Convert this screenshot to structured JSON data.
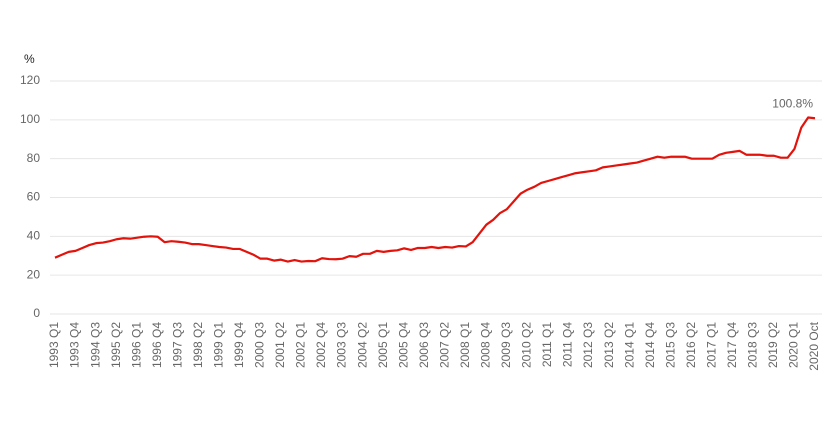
{
  "chart_data": {
    "type": "line",
    "ylabel": "%",
    "categories": [
      "1993 Q1",
      null,
      null,
      "1993 Q4",
      null,
      null,
      "1994 Q3",
      null,
      null,
      "1995 Q2",
      null,
      null,
      "1996 Q1",
      null,
      null,
      "1996 Q4",
      null,
      null,
      "1997 Q3",
      null,
      null,
      "1998 Q2",
      null,
      null,
      "1999 Q1",
      null,
      null,
      "1999 Q4",
      null,
      null,
      "2000 Q3",
      null,
      null,
      "2001 Q2",
      null,
      null,
      "2002 Q1",
      null,
      null,
      "2002 Q4",
      null,
      null,
      "2003 Q3",
      null,
      null,
      "2004 Q2",
      null,
      null,
      "2005 Q1",
      null,
      null,
      "2005 Q4",
      null,
      null,
      "2006 Q3",
      null,
      null,
      "2007 Q2",
      null,
      null,
      "2008 Q1",
      null,
      null,
      "2008 Q4",
      null,
      null,
      "2009 Q3",
      null,
      null,
      "2010 Q2",
      null,
      null,
      "2011 Q1",
      null,
      null,
      "2011 Q4",
      null,
      null,
      "2012 Q3",
      null,
      null,
      "2013 Q2",
      null,
      null,
      "2014 Q1",
      null,
      null,
      "2014 Q4",
      null,
      null,
      "2015 Q3",
      null,
      null,
      "2016 Q2",
      null,
      null,
      "2017 Q1",
      null,
      null,
      "2017 Q4",
      null,
      null,
      "2018 Q3",
      null,
      null,
      "2019 Q2",
      null,
      null,
      "2020 Q1",
      null,
      null,
      "2020 Oct"
    ],
    "values": [
      29,
      30.5,
      32,
      32.5,
      34,
      35.5,
      36.5,
      36.8,
      37.5,
      38.5,
      39,
      38.8,
      39.3,
      39.8,
      40,
      39.8,
      37,
      37.5,
      37.2,
      36.8,
      36,
      36,
      35.5,
      35,
      34.5,
      34.2,
      33.5,
      33.5,
      32,
      30.5,
      28.5,
      28.5,
      27.5,
      28,
      27,
      27.8,
      27,
      27.3,
      27.2,
      28.7,
      28.3,
      28.2,
      28.5,
      29.8,
      29.5,
      31,
      31,
      32.5,
      32,
      32.5,
      32.8,
      33.8,
      33,
      34,
      34,
      34.5,
      34,
      34.5,
      34.2,
      35,
      34.8,
      37,
      41.5,
      46,
      48.5,
      52,
      54,
      58,
      62,
      64,
      65.5,
      67.5,
      68.5,
      69.5,
      70.5,
      71.5,
      72.5,
      73,
      73.5,
      74,
      75.5,
      76,
      76.5,
      77,
      77.5,
      78,
      79,
      80,
      81,
      80.5,
      81,
      81,
      81,
      80,
      80,
      80,
      80,
      82,
      83,
      83.5,
      84,
      82,
      82,
      82,
      81.5,
      81.5,
      80.5,
      80.5,
      85,
      96,
      101.2,
      100.8
    ],
    "value_labels": [
      null,
      null,
      null,
      null,
      null,
      null,
      null,
      null,
      null,
      null,
      null,
      null,
      null,
      null,
      null,
      null,
      null,
      null,
      null,
      null,
      null,
      null,
      null,
      null,
      null,
      null,
      null,
      null,
      null,
      null,
      null,
      null,
      null,
      null,
      null,
      null,
      null,
      null,
      null,
      null,
      null,
      null,
      null,
      null,
      null,
      null,
      null,
      null,
      null,
      null,
      null,
      null,
      null,
      null,
      null,
      null,
      null,
      null,
      null,
      null,
      null,
      null,
      null,
      null,
      null,
      null,
      null,
      null,
      null,
      null,
      null,
      null,
      null,
      null,
      null,
      null,
      null,
      null,
      null,
      null,
      null,
      null,
      null,
      null,
      null,
      null,
      null,
      null,
      null,
      null,
      null,
      null,
      null,
      null,
      null,
      null,
      null,
      null,
      null,
      null,
      null,
      null,
      null,
      null,
      null,
      null,
      null,
      null,
      null,
      null,
      null,
      "100.8%"
    ],
    "color": "#e3120b",
    "ylim": [
      0,
      120
    ],
    "yticks": [
      0,
      20,
      40,
      60,
      80,
      100,
      120
    ],
    "grid": true
  }
}
